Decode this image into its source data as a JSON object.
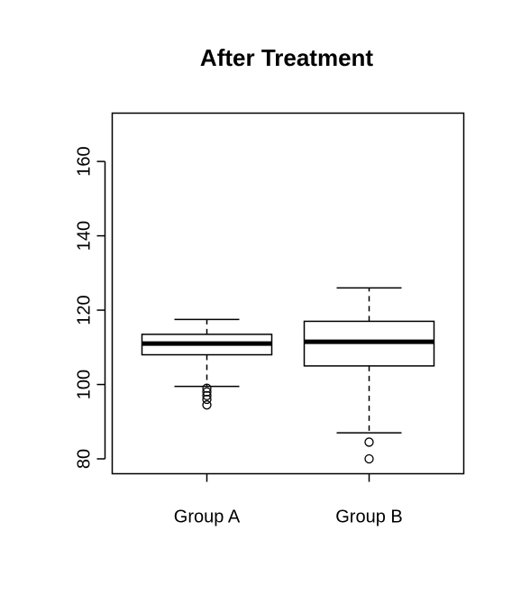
{
  "chart_data": {
    "type": "boxplot",
    "title": "After Treatment",
    "xlabel": "",
    "ylabel": "",
    "categories": [
      "Group A",
      "Group B"
    ],
    "boxes": [
      {
        "name": "Group A",
        "min": 99.5,
        "q1": 108,
        "median": 111,
        "q3": 113.5,
        "max": 117.5,
        "outliers": [
          94.5,
          96,
          97,
          98,
          99
        ]
      },
      {
        "name": "Group B",
        "min": 87,
        "q1": 105,
        "median": 111.5,
        "q3": 117,
        "max": 126,
        "outliers": [
          84.5,
          80
        ]
      }
    ],
    "ylim": [
      76,
      173
    ],
    "yticks": [
      80,
      100,
      120,
      140,
      160
    ],
    "grid": false,
    "legend": "none"
  }
}
